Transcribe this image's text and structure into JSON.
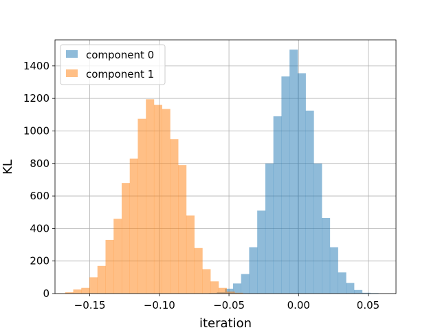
{
  "chart_data": {
    "type": "bar",
    "xlabel": "iteration",
    "ylabel": "KL",
    "xlim": [
      -0.175,
      0.07
    ],
    "ylim": [
      0,
      1560
    ],
    "grid": true,
    "legend_position": "top-left",
    "x_ticks": [
      -0.15,
      -0.1,
      -0.05,
      0.0,
      0.05
    ],
    "x_tick_labels": [
      "−0.15",
      "−0.10",
      "−0.05",
      "0.00",
      "0.05"
    ],
    "y_ticks": [
      0,
      200,
      400,
      600,
      800,
      1000,
      1200,
      1400
    ],
    "y_tick_labels": [
      "0",
      "200",
      "400",
      "600",
      "800",
      "1000",
      "1200",
      "1400"
    ],
    "bin_width": 0.0058,
    "series": [
      {
        "name": "component 0",
        "color": "#1f77b4",
        "opacity": 0.5,
        "bins": [
          [
            -0.0645,
            3
          ],
          [
            -0.0587,
            8
          ],
          [
            -0.0529,
            30
          ],
          [
            -0.0471,
            62
          ],
          [
            -0.0413,
            120
          ],
          [
            -0.0355,
            285
          ],
          [
            -0.0297,
            510
          ],
          [
            -0.0239,
            800
          ],
          [
            -0.0181,
            1090
          ],
          [
            -0.0123,
            1335
          ],
          [
            -0.0065,
            1500
          ],
          [
            -0.0007,
            1355
          ],
          [
            0.0051,
            1125
          ],
          [
            0.0109,
            800
          ],
          [
            0.0167,
            465
          ],
          [
            0.0225,
            285
          ],
          [
            0.0283,
            130
          ],
          [
            0.0341,
            65
          ],
          [
            0.0399,
            22
          ],
          [
            0.0457,
            5
          ],
          [
            0.0515,
            3
          ]
        ]
      },
      {
        "name": "component 1",
        "color": "#ff7f0e",
        "opacity": 0.5,
        "bins": [
          [
            -0.1735,
            2
          ],
          [
            -0.1677,
            8
          ],
          [
            -0.1619,
            25
          ],
          [
            -0.1561,
            35
          ],
          [
            -0.1503,
            100
          ],
          [
            -0.1445,
            170
          ],
          [
            -0.1387,
            330
          ],
          [
            -0.1329,
            460
          ],
          [
            -0.1271,
            680
          ],
          [
            -0.1213,
            830
          ],
          [
            -0.1155,
            1075
          ],
          [
            -0.1097,
            1195
          ],
          [
            -0.1039,
            1160
          ],
          [
            -0.0981,
            1135
          ],
          [
            -0.0923,
            950
          ],
          [
            -0.0865,
            790
          ],
          [
            -0.0807,
            480
          ],
          [
            -0.0749,
            280
          ],
          [
            -0.0691,
            150
          ],
          [
            -0.0633,
            75
          ],
          [
            -0.0575,
            35
          ],
          [
            -0.0517,
            12
          ],
          [
            -0.0459,
            5
          ]
        ]
      }
    ]
  }
}
